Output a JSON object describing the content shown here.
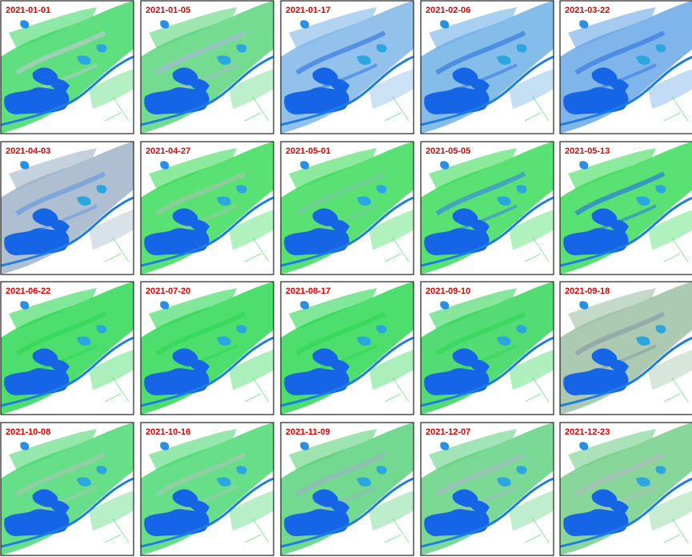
{
  "panels": [
    {
      "label": "2021-01-01"
    },
    {
      "label": "2021-01-05"
    },
    {
      "label": "2021-01-17"
    },
    {
      "label": "2021-02-06"
    },
    {
      "label": "2021-03-22"
    },
    {
      "label": "2021-04-03"
    },
    {
      "label": "2021-04-27"
    },
    {
      "label": "2021-05-01"
    },
    {
      "label": "2021-05-05"
    },
    {
      "label": "2021-05-13"
    },
    {
      "label": "2021-06-22"
    },
    {
      "label": "2021-07-20"
    },
    {
      "label": "2021-08-17"
    },
    {
      "label": "2021-09-10"
    },
    {
      "label": "2021-09-18"
    },
    {
      "label": "2021-10-08"
    },
    {
      "label": "2021-10-16"
    },
    {
      "label": "2021-11-09"
    },
    {
      "label": "2021-12-07"
    },
    {
      "label": "2021-12-23"
    }
  ]
}
